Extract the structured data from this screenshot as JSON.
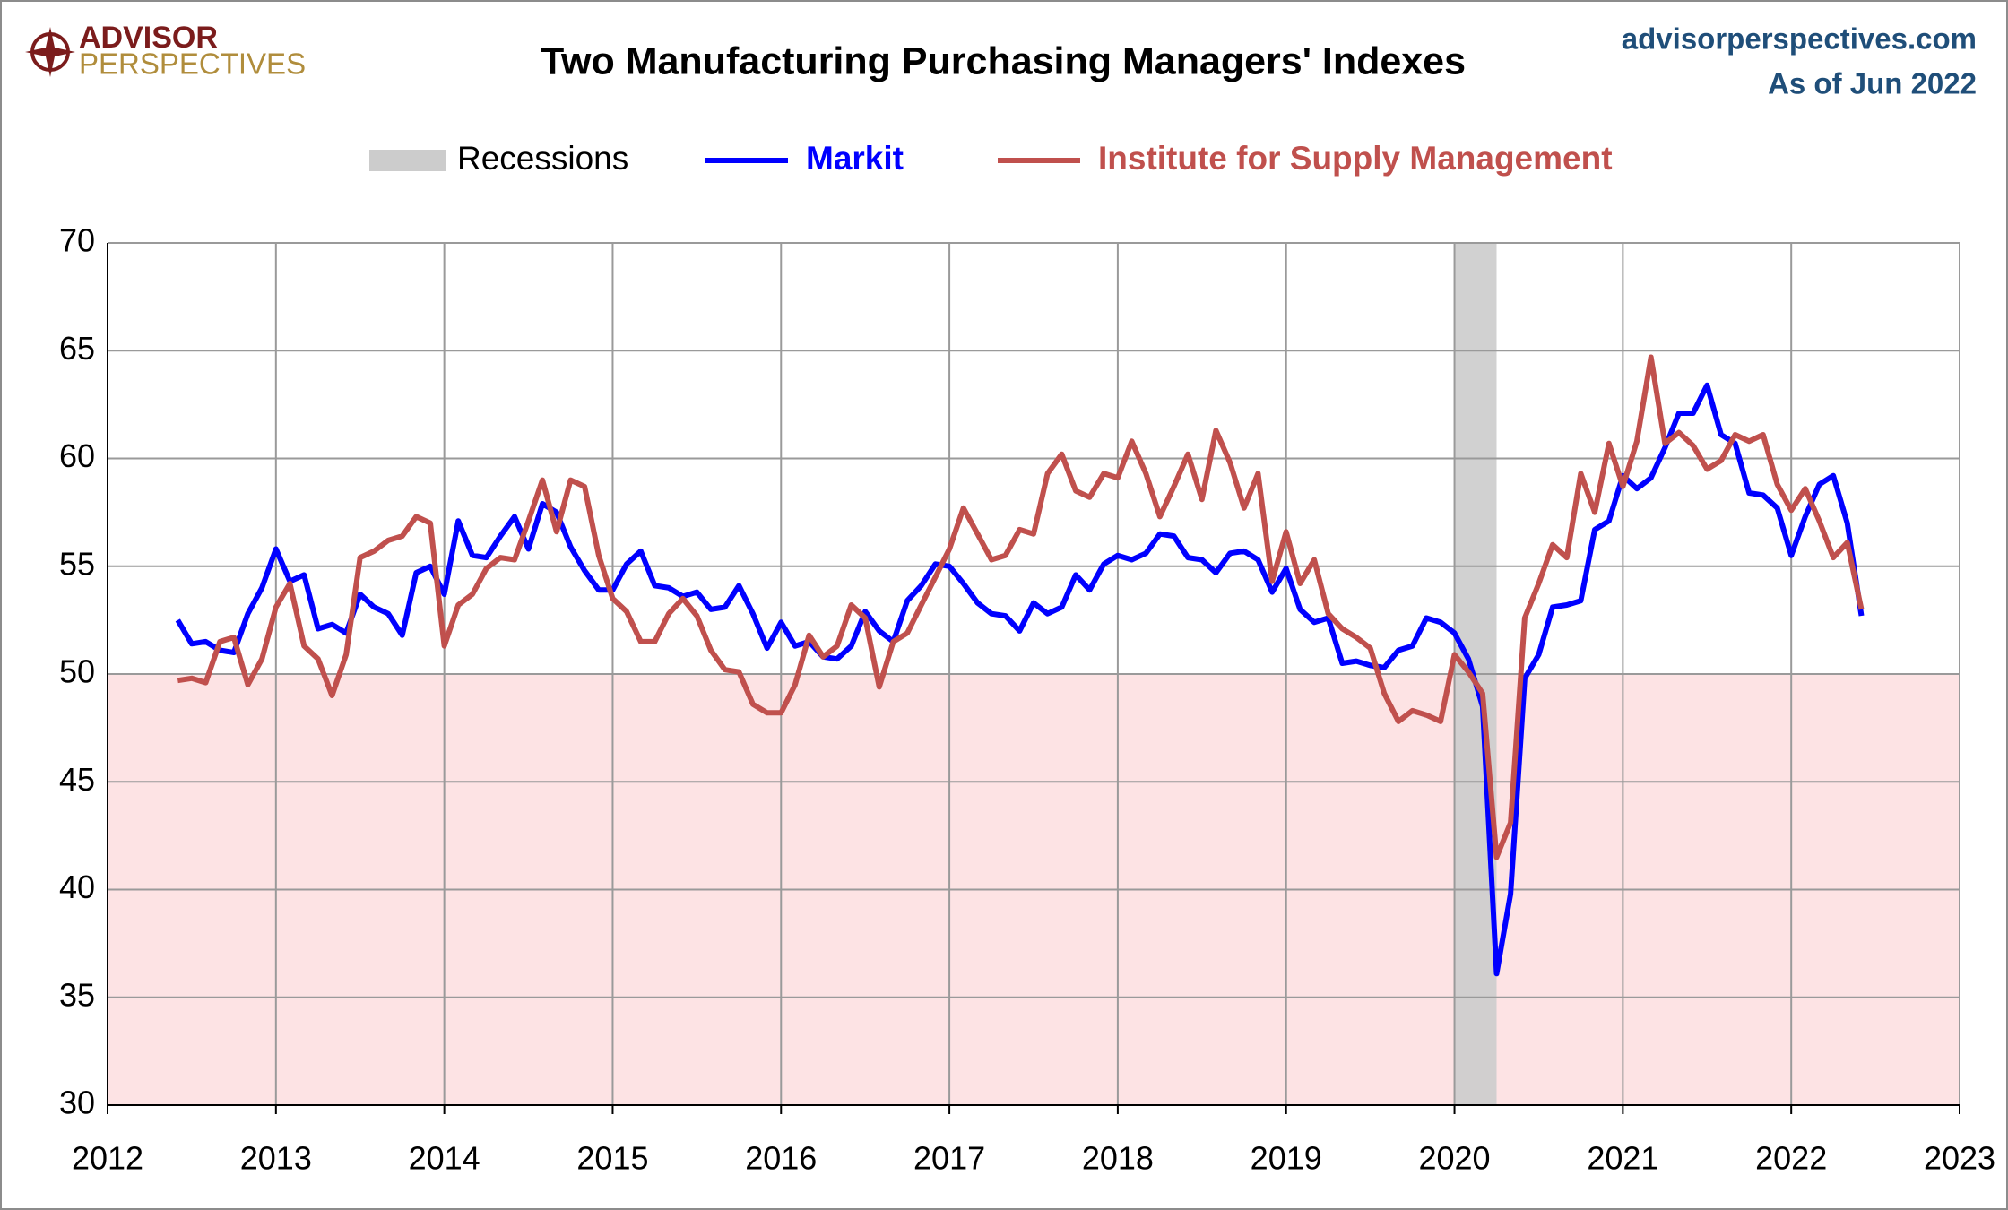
{
  "logo": {
    "line1": "ADVISOR",
    "line2": "PERSPECTIVES"
  },
  "site": "advisorperspectives.com",
  "as_of": "As of Jun 2022",
  "chart_data": {
    "type": "line",
    "title": "Two Manufacturing Purchasing Managers' Indexes",
    "xlim": [
      2012,
      2023
    ],
    "xticks": [
      2012,
      2013,
      2014,
      2015,
      2016,
      2017,
      2018,
      2019,
      2020,
      2021,
      2022,
      2023
    ],
    "ylim": [
      30,
      70
    ],
    "yticks": [
      30,
      35,
      40,
      45,
      50,
      55,
      60,
      65,
      70
    ],
    "grid": true,
    "shaded_band": {
      "from": 30,
      "to": 50,
      "color": "#fde3e4"
    },
    "recessions": {
      "name": "Recessions",
      "color": "#cccccc",
      "spans": [
        [
          2020,
          2020.25
        ]
      ]
    },
    "x": [
      2012.417,
      2012.5,
      2012.583,
      2012.667,
      2012.75,
      2012.833,
      2012.917,
      2013,
      2013.083,
      2013.167,
      2013.25,
      2013.333,
      2013.417,
      2013.5,
      2013.583,
      2013.667,
      2013.75,
      2013.833,
      2013.917,
      2014,
      2014.083,
      2014.167,
      2014.25,
      2014.333,
      2014.417,
      2014.5,
      2014.583,
      2014.667,
      2014.75,
      2014.833,
      2014.917,
      2015,
      2015.083,
      2015.167,
      2015.25,
      2015.333,
      2015.417,
      2015.5,
      2015.583,
      2015.667,
      2015.75,
      2015.833,
      2015.917,
      2016,
      2016.083,
      2016.167,
      2016.25,
      2016.333,
      2016.417,
      2016.5,
      2016.583,
      2016.667,
      2016.75,
      2016.833,
      2016.917,
      2017,
      2017.083,
      2017.167,
      2017.25,
      2017.333,
      2017.417,
      2017.5,
      2017.583,
      2017.667,
      2017.75,
      2017.833,
      2017.917,
      2018,
      2018.083,
      2018.167,
      2018.25,
      2018.333,
      2018.417,
      2018.5,
      2018.583,
      2018.667,
      2018.75,
      2018.833,
      2018.917,
      2019,
      2019.083,
      2019.167,
      2019.25,
      2019.333,
      2019.417,
      2019.5,
      2019.583,
      2019.667,
      2019.75,
      2019.833,
      2019.917,
      2020,
      2020.083,
      2020.167,
      2020.25,
      2020.333,
      2020.417,
      2020.5,
      2020.583,
      2020.667,
      2020.75,
      2020.833,
      2020.917,
      2021,
      2021.083,
      2021.167,
      2021.25,
      2021.333,
      2021.417,
      2021.5,
      2021.583,
      2021.667,
      2021.75,
      2021.833,
      2021.917,
      2022,
      2022.083,
      2022.167,
      2022.25,
      2022.333,
      2022.417
    ],
    "series": [
      {
        "name": "Markit",
        "color": "#0000ff",
        "values": [
          52.5,
          51.4,
          51.5,
          51.1,
          51.0,
          52.8,
          54.0,
          55.8,
          54.3,
          54.6,
          52.1,
          52.3,
          51.9,
          53.7,
          53.1,
          52.8,
          51.8,
          54.7,
          55.0,
          53.7,
          57.1,
          55.5,
          55.4,
          56.4,
          57.3,
          55.8,
          57.9,
          57.5,
          55.9,
          54.8,
          53.9,
          53.9,
          55.1,
          55.7,
          54.1,
          54.0,
          53.6,
          53.8,
          53.0,
          53.1,
          54.1,
          52.8,
          51.2,
          52.4,
          51.3,
          51.5,
          50.8,
          50.7,
          51.3,
          52.9,
          52.0,
          51.5,
          53.4,
          54.1,
          55.1,
          55.0,
          54.2,
          53.3,
          52.8,
          52.7,
          52.0,
          53.3,
          52.8,
          53.1,
          54.6,
          53.9,
          55.1,
          55.5,
          55.3,
          55.6,
          56.5,
          56.4,
          55.4,
          55.3,
          54.7,
          55.6,
          55.7,
          55.3,
          53.8,
          54.9,
          53.0,
          52.4,
          52.6,
          50.5,
          50.6,
          50.4,
          50.3,
          51.1,
          51.3,
          52.6,
          52.4,
          51.9,
          50.7,
          48.5,
          36.1,
          39.8,
          49.8,
          50.9,
          53.1,
          53.2,
          53.4,
          56.7,
          57.1,
          59.2,
          58.6,
          59.1,
          60.5,
          62.1,
          62.1,
          63.4,
          61.1,
          60.7,
          58.4,
          58.3,
          57.7,
          55.5,
          57.3,
          58.8,
          59.2,
          57.0,
          52.7
        ]
      },
      {
        "name": "Institute for Supply Management",
        "color": "#c0504d",
        "values": [
          49.7,
          49.8,
          49.6,
          51.5,
          51.7,
          49.5,
          50.7,
          53.1,
          54.2,
          51.3,
          50.7,
          49.0,
          50.9,
          55.4,
          55.7,
          56.2,
          56.4,
          57.3,
          57.0,
          51.3,
          53.2,
          53.7,
          54.9,
          55.4,
          55.3,
          57.1,
          59.0,
          56.6,
          59.0,
          58.7,
          55.5,
          53.5,
          52.9,
          51.5,
          51.5,
          52.8,
          53.5,
          52.7,
          51.1,
          50.2,
          50.1,
          48.6,
          48.2,
          48.2,
          49.5,
          51.8,
          50.8,
          51.3,
          53.2,
          52.6,
          49.4,
          51.5,
          51.9,
          53.2,
          54.5,
          55.8,
          57.7,
          56.5,
          55.3,
          55.5,
          56.7,
          56.5,
          59.3,
          60.2,
          58.5,
          58.2,
          59.3,
          59.1,
          60.8,
          59.3,
          57.3,
          58.7,
          60.2,
          58.1,
          61.3,
          59.8,
          57.7,
          59.3,
          54.3,
          56.6,
          54.2,
          55.3,
          52.8,
          52.1,
          51.7,
          51.2,
          49.1,
          47.8,
          48.3,
          48.1,
          47.8,
          50.9,
          50.1,
          49.1,
          41.5,
          43.1,
          52.6,
          54.2,
          56.0,
          55.4,
          59.3,
          57.5,
          60.7,
          58.7,
          60.8,
          64.7,
          60.7,
          61.2,
          60.6,
          59.5,
          59.9,
          61.1,
          60.8,
          61.1,
          58.8,
          57.6,
          58.6,
          57.1,
          55.4,
          56.1,
          53.0
        ]
      }
    ]
  }
}
